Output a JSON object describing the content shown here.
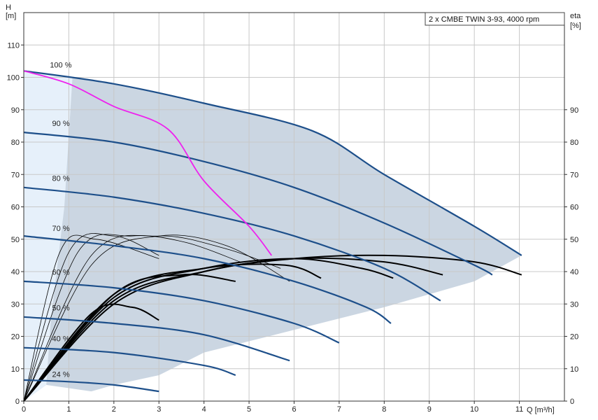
{
  "chart_data": {
    "type": "line",
    "title": "2 x CMBE TWIN 3-93, 4000 rpm",
    "xlabel": "Q [m³/h]",
    "ylabel_left": [
      "H",
      "[m]"
    ],
    "ylabel_right": [
      "eta",
      "[%]"
    ],
    "xlim": [
      0,
      12
    ],
    "ylim": [
      0,
      120
    ],
    "eta_lim": [
      0,
      120
    ],
    "x_ticks": [
      0,
      1,
      2,
      3,
      4,
      5,
      6,
      7,
      8,
      9,
      10,
      11
    ],
    "y_ticks": [
      0,
      10,
      20,
      30,
      40,
      50,
      60,
      70,
      80,
      90,
      100,
      110
    ],
    "eta_ticks": [
      0,
      10,
      20,
      30,
      40,
      50,
      60,
      70,
      80,
      90
    ],
    "grid": true,
    "colors": {
      "speed_curve": "#1d4f8a",
      "envelope_fill": "#cbd6e2",
      "envelope_light": "#e6f0fa",
      "single_pump": "#ee22ee",
      "efficiency": "#000000",
      "grid": "#c8c8c8"
    },
    "speed_labels": [
      {
        "text": "100 %",
        "x": 0.3,
        "y": 103
      },
      {
        "text": "90 %",
        "x": 0.35,
        "y": 85
      },
      {
        "text": "80 %",
        "x": 0.35,
        "y": 68
      },
      {
        "text": "70 %",
        "x": 0.35,
        "y": 52.5
      },
      {
        "text": "60 %",
        "x": 0.35,
        "y": 39
      },
      {
        "text": "50 %",
        "x": 0.35,
        "y": 28
      },
      {
        "text": "40 %",
        "x": 0.35,
        "y": 18.5
      },
      {
        "text": "24 %",
        "x": 0.35,
        "y": 7.5
      }
    ],
    "series": [
      {
        "name": "100 %",
        "x": [
          0,
          2,
          4,
          6.4,
          8,
          10,
          11.05
        ],
        "y": [
          102,
          98,
          92,
          83.5,
          70,
          54,
          45
        ]
      },
      {
        "name": "90 %",
        "x": [
          0,
          2,
          4,
          6,
          8,
          10,
          10.4
        ],
        "y": [
          83,
          80,
          74,
          66,
          55,
          42,
          39
        ]
      },
      {
        "name": "80 %",
        "x": [
          0,
          2,
          4,
          6,
          8,
          9.25
        ],
        "y": [
          66,
          63,
          58,
          51,
          41,
          31
        ]
      },
      {
        "name": "70 %",
        "x": [
          0,
          2,
          4,
          6,
          7.6,
          8.15
        ],
        "y": [
          51,
          48,
          44,
          37,
          29,
          24
        ]
      },
      {
        "name": "60 %",
        "x": [
          0,
          2,
          4,
          6,
          7
        ],
        "y": [
          37,
          35,
          31,
          24,
          18
        ]
      },
      {
        "name": "50 %",
        "x": [
          0,
          2,
          4,
          5.9
        ],
        "y": [
          26,
          24,
          20.5,
          12.5
        ]
      },
      {
        "name": "40 %",
        "x": [
          0,
          2,
          4,
          4.7
        ],
        "y": [
          16.5,
          15,
          11,
          8
        ]
      },
      {
        "name": "24 %",
        "x": [
          0,
          1,
          2,
          3
        ],
        "y": [
          6.5,
          6,
          5,
          3
        ]
      },
      {
        "name": "single pump 100 %",
        "x": [
          0,
          1,
          2,
          3.2,
          4,
          5,
          5.5
        ],
        "y": [
          102,
          98,
          91,
          84,
          68,
          54,
          45
        ]
      }
    ],
    "efficiency_curves": [
      {
        "speed": "100 %",
        "x": [
          0,
          2,
          4,
          6,
          8,
          10,
          11.05
        ],
        "eta": [
          0,
          30,
          40,
          44,
          45,
          43,
          39
        ]
      },
      {
        "speed": "90 %",
        "x": [
          0,
          2,
          4,
          6,
          8,
          9.3
        ],
        "eta": [
          0,
          31,
          40,
          44,
          43,
          39
        ]
      },
      {
        "speed": "80 %",
        "x": [
          0,
          2,
          4,
          6,
          7.5,
          8.2
        ],
        "eta": [
          0,
          32,
          41,
          44,
          41,
          38
        ]
      },
      {
        "speed": "70 %",
        "x": [
          0,
          2,
          4,
          5.8,
          6.6
        ],
        "eta": [
          0,
          33,
          41,
          42,
          38
        ]
      },
      {
        "speed": "60 %",
        "x": [
          0,
          2,
          3.5,
          4.7
        ],
        "eta": [
          0,
          33,
          39,
          37
        ]
      },
      {
        "speed": "40 %",
        "x": [
          0,
          1.5,
          2.4,
          3
        ],
        "eta": [
          0,
          27,
          29,
          25
        ]
      },
      {
        "speed": "single 100 %",
        "x": [
          0,
          1.5,
          3,
          4.5,
          5.9
        ],
        "eta": [
          0,
          42,
          51,
          48,
          37
        ]
      },
      {
        "speed": "single 90 %",
        "x": [
          0,
          1.5,
          3,
          4.5,
          5.7
        ],
        "eta": [
          0,
          45,
          51,
          47,
          41
        ]
      },
      {
        "speed": "single 80 %",
        "x": [
          0,
          1.2,
          2.4,
          3.6,
          4.8
        ],
        "eta": [
          0,
          46,
          51,
          49,
          43
        ]
      },
      {
        "speed": "single 70 %",
        "x": [
          0,
          1,
          2,
          3
        ],
        "eta": [
          0,
          46,
          51,
          45
        ]
      },
      {
        "speed": "single 60 %",
        "x": [
          0,
          0.8,
          1.6,
          3
        ],
        "eta": [
          0,
          46,
          50,
          44
        ]
      }
    ],
    "envelope": {
      "upper_x": [
        0,
        2,
        4,
        6.4,
        8,
        10,
        11.05
      ],
      "upper_y": [
        102,
        98,
        92,
        83.5,
        70,
        54,
        45
      ],
      "lower_x": [
        11.05,
        10,
        8,
        6,
        4,
        3,
        2,
        1.5,
        0.5,
        0
      ],
      "lower_y": [
        45,
        37,
        29,
        22,
        15,
        8,
        5,
        3,
        5,
        0
      ]
    }
  }
}
